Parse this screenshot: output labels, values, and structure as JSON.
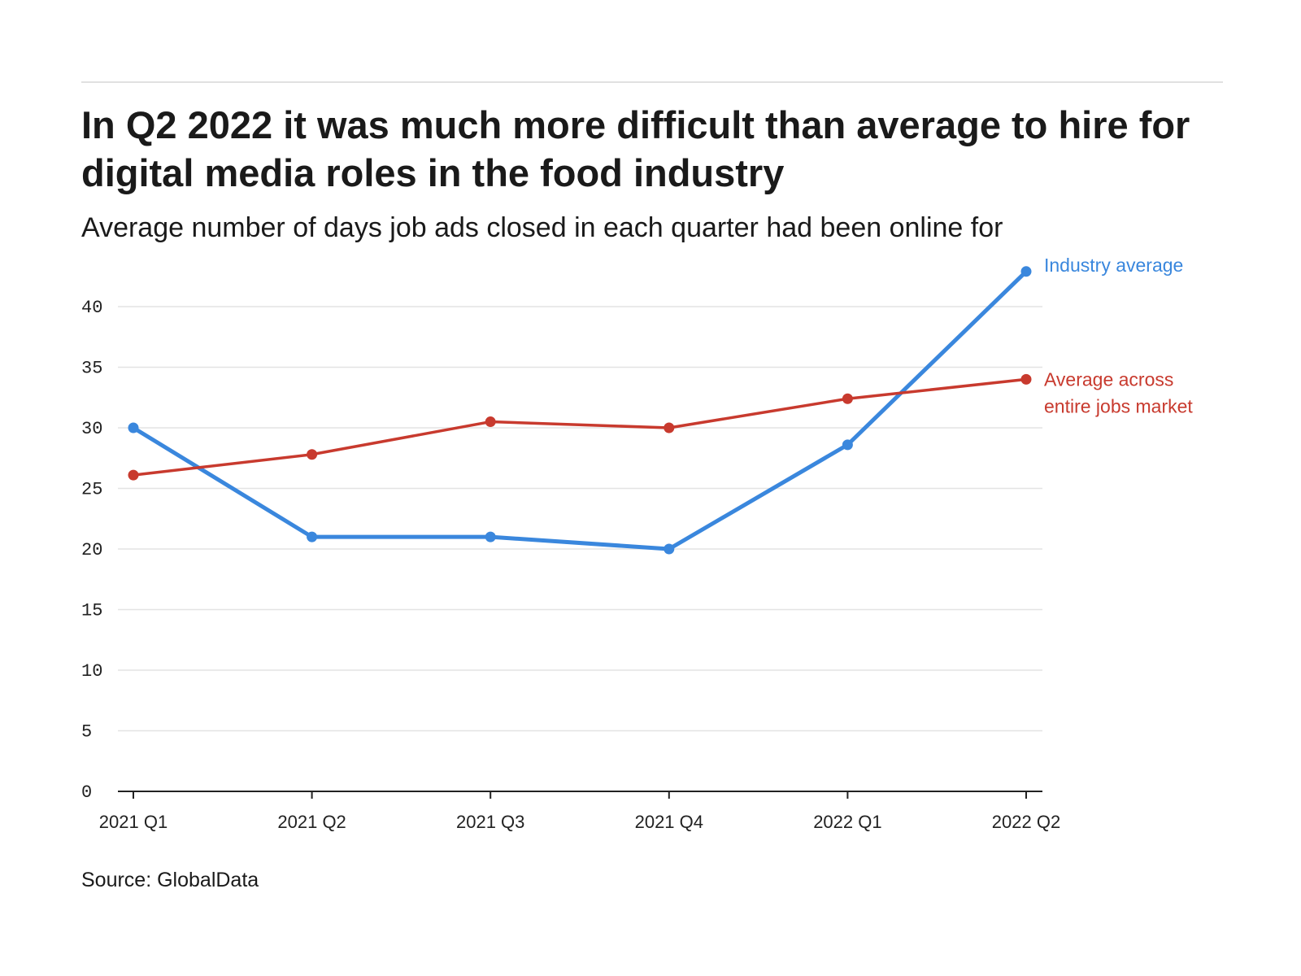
{
  "title": "In Q2 2022 it was much more difficult than average to hire for digital media roles in the food industry",
  "subtitle": "Average number of days job ads closed in each quarter had been online for",
  "source": "Source: GlobalData",
  "colors": {
    "industry": "#3a87dd",
    "market": "#c83a2e",
    "grid": "#e3e3e3",
    "axis": "#222222"
  },
  "chart_data": {
    "type": "line",
    "categories": [
      "2021 Q1",
      "2021 Q2",
      "2021 Q3",
      "2021 Q4",
      "2022 Q1",
      "2022 Q2"
    ],
    "series": [
      {
        "name": "Industry average",
        "label_lines": [
          "Industry average"
        ],
        "color": "#3a87dd",
        "values": [
          30,
          21,
          21,
          20,
          28.6,
          42.9
        ]
      },
      {
        "name": "Average across entire jobs market",
        "label_lines": [
          "Average across",
          "entire jobs market"
        ],
        "color": "#c83a2e",
        "values": [
          26.1,
          27.8,
          30.5,
          30,
          32.4,
          34
        ]
      }
    ],
    "yticks": [
      0,
      5,
      10,
      15,
      20,
      25,
      30,
      35,
      40
    ],
    "ylim": [
      0,
      43
    ],
    "xlabel": "",
    "ylabel": "",
    "grid": true,
    "legend": "direct labels at line ends (right)"
  }
}
